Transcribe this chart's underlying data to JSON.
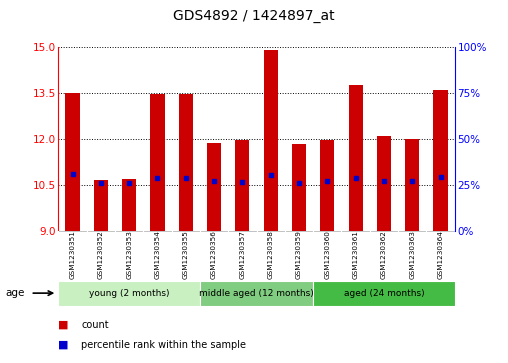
{
  "title": "GDS4892 / 1424897_at",
  "samples": [
    "GSM1230351",
    "GSM1230352",
    "GSM1230353",
    "GSM1230354",
    "GSM1230355",
    "GSM1230356",
    "GSM1230357",
    "GSM1230358",
    "GSM1230359",
    "GSM1230360",
    "GSM1230361",
    "GSM1230362",
    "GSM1230363",
    "GSM1230364"
  ],
  "bar_heights": [
    13.5,
    10.65,
    10.7,
    13.47,
    13.46,
    11.85,
    11.95,
    14.9,
    11.83,
    11.97,
    13.75,
    12.1,
    12.0,
    13.6
  ],
  "bar_base": 9.0,
  "blue_dot_y": [
    10.85,
    10.55,
    10.57,
    10.72,
    10.72,
    10.62,
    10.58,
    10.82,
    10.57,
    10.62,
    10.72,
    10.63,
    10.62,
    10.75
  ],
  "ylim_left": [
    9,
    15
  ],
  "ylim_right": [
    0,
    100
  ],
  "yticks_left": [
    9,
    10.5,
    12,
    13.5,
    15
  ],
  "yticks_right": [
    0,
    25,
    50,
    75,
    100
  ],
  "bar_color": "#cc0000",
  "dot_color": "#0000cc",
  "groups": [
    {
      "label": "young (2 months)",
      "start": 0,
      "end": 4,
      "color": "#c8f0c0"
    },
    {
      "label": "middle aged (12 months)",
      "start": 5,
      "end": 8,
      "color": "#80cc80"
    },
    {
      "label": "aged (24 months)",
      "start": 9,
      "end": 13,
      "color": "#44bb44"
    }
  ],
  "legend_items": [
    {
      "label": "count",
      "color": "#cc0000"
    },
    {
      "label": "percentile rank within the sample",
      "color": "#0000cc"
    }
  ],
  "bar_width": 0.5
}
